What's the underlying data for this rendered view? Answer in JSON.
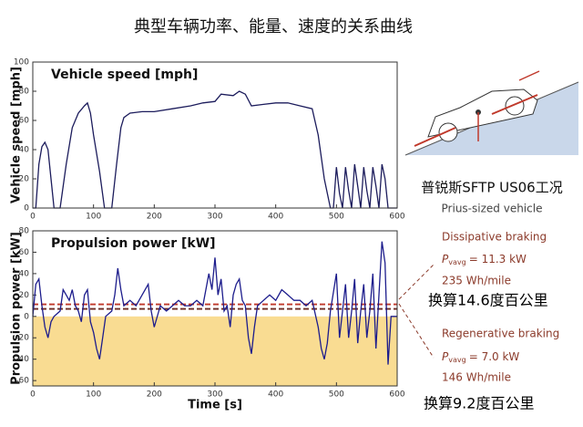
{
  "title": "典型车辆功率、能量、速度的关系曲线",
  "chart_data": [
    {
      "type": "line",
      "title": "Vehicle speed [mph]",
      "y_label": "Vehicle speed [mph]",
      "color": "#1c1c5c",
      "x": [
        0,
        5,
        10,
        15,
        20,
        25,
        30,
        35,
        45,
        55,
        65,
        75,
        85,
        90,
        95,
        100,
        110,
        118,
        130,
        138,
        145,
        150,
        160,
        180,
        200,
        230,
        260,
        280,
        300,
        310,
        330,
        340,
        350,
        360,
        380,
        400,
        420,
        440,
        460,
        470,
        480,
        490,
        495,
        500,
        505,
        510,
        515,
        520,
        525,
        530,
        535,
        540,
        545,
        550,
        555,
        560,
        565,
        570,
        575,
        580,
        585,
        600
      ],
      "values": [
        0,
        0,
        30,
        42,
        45,
        40,
        20,
        0,
        0,
        30,
        55,
        65,
        70,
        72,
        65,
        50,
        25,
        0,
        0,
        30,
        55,
        62,
        65,
        66,
        66,
        68,
        70,
        72,
        73,
        78,
        77,
        80,
        78,
        70,
        71,
        72,
        72,
        70,
        68,
        50,
        20,
        0,
        0,
        28,
        10,
        0,
        28,
        12,
        0,
        30,
        15,
        0,
        28,
        12,
        0,
        28,
        15,
        0,
        30,
        20,
        0,
        0
      ],
      "xlim": [
        0,
        600
      ],
      "xticks": [
        0,
        100,
        200,
        300,
        400,
        500,
        600
      ],
      "ylim": [
        0,
        100
      ],
      "yticks": [
        0,
        20,
        40,
        60,
        80,
        100
      ]
    },
    {
      "type": "line",
      "title": "Propulsion power [kW]",
      "y_label": "Propulsion power [kW]",
      "x_label": "Time [s]",
      "color": "#1c1c8c",
      "x": [
        0,
        5,
        10,
        15,
        20,
        25,
        30,
        35,
        45,
        50,
        55,
        60,
        65,
        70,
        75,
        80,
        85,
        90,
        95,
        100,
        105,
        110,
        115,
        120,
        130,
        135,
        140,
        145,
        150,
        160,
        170,
        180,
        190,
        195,
        200,
        210,
        220,
        230,
        240,
        250,
        260,
        270,
        280,
        290,
        295,
        300,
        305,
        310,
        315,
        320,
        325,
        330,
        335,
        340,
        345,
        350,
        355,
        360,
        365,
        370,
        380,
        390,
        400,
        410,
        420,
        430,
        440,
        450,
        460,
        470,
        475,
        480,
        485,
        490,
        500,
        505,
        510,
        515,
        520,
        525,
        530,
        535,
        540,
        545,
        550,
        555,
        560,
        565,
        570,
        575,
        580,
        585,
        590,
        600
      ],
      "values": [
        0,
        30,
        35,
        10,
        -10,
        -20,
        -5,
        0,
        5,
        25,
        20,
        15,
        25,
        10,
        5,
        -5,
        20,
        25,
        -5,
        -15,
        -30,
        -40,
        -20,
        0,
        5,
        20,
        45,
        25,
        10,
        15,
        10,
        20,
        30,
        5,
        -10,
        10,
        5,
        10,
        15,
        10,
        10,
        15,
        10,
        40,
        25,
        55,
        20,
        35,
        5,
        10,
        -10,
        20,
        30,
        35,
        15,
        10,
        -20,
        -35,
        -10,
        10,
        15,
        20,
        15,
        25,
        20,
        15,
        15,
        10,
        15,
        -10,
        -30,
        -40,
        -25,
        5,
        40,
        -20,
        5,
        30,
        -20,
        5,
        35,
        -25,
        5,
        30,
        -20,
        5,
        40,
        -30,
        20,
        70,
        50,
        -45,
        0,
        0
      ],
      "xlim": [
        0,
        600
      ],
      "xticks": [
        0,
        100,
        200,
        300,
        400,
        500,
        600
      ],
      "ylim": [
        -65,
        80
      ],
      "yticks": [
        -60,
        -40,
        -20,
        0,
        20,
        40,
        60,
        80
      ],
      "negative_fill": "#f9dc92",
      "hlines": [
        {
          "value": 11.3,
          "color": "#c0392b"
        },
        {
          "value": 7.0,
          "color": "#6b2a22"
        }
      ]
    }
  ],
  "annotations": {
    "cycle": "普锐斯SFTP US06工况",
    "vehicle": "Prius-sized vehicle",
    "dissipative": {
      "heading": "Dissipative braking",
      "symbol": "P",
      "subscript": "vavg",
      "power": "= 11.3 kW",
      "energy": "235 Wh/mile",
      "converted": "换算14.6度百公里"
    },
    "regenerative": {
      "heading": "Regenerative braking",
      "symbol": "P",
      "subscript": "vavg",
      "power": "= 7.0 kW",
      "energy": "146 Wh/mile",
      "converted": "换算9.2度百公里"
    }
  }
}
